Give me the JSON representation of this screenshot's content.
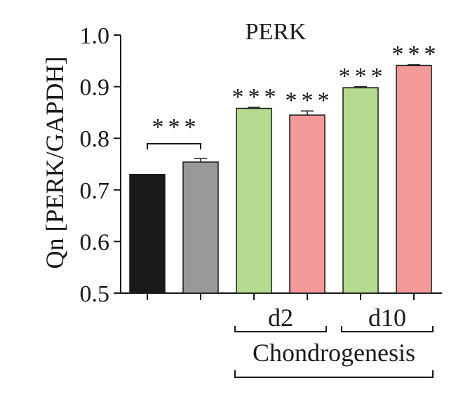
{
  "chart_data": {
    "type": "bar",
    "title": "PERK",
    "ylabel": "Qn [PERK/GAPDH]",
    "ylim": [
      0.5,
      1.0
    ],
    "yticks": [
      "0.5",
      "0.6",
      "0.7",
      "0.8",
      "0.9",
      "1.0"
    ],
    "grid": false,
    "bars": [
      {
        "value": 0.73,
        "error": 0.0,
        "color": "#1a1a1a",
        "sig": ""
      },
      {
        "value": 0.754,
        "error": 0.007,
        "color": "#999999",
        "sig": ""
      },
      {
        "value": 0.858,
        "error": 0.002,
        "color": "#b5d98f",
        "sig": "***"
      },
      {
        "value": 0.845,
        "error": 0.008,
        "color": "#f4999a",
        "sig": "***"
      },
      {
        "value": 0.898,
        "error": 0.002,
        "color": "#b5d98f",
        "sig": "***"
      },
      {
        "value": 0.941,
        "error": 0.002,
        "color": "#f4999a",
        "sig": "***"
      }
    ],
    "comparison_sig": "***",
    "groups": [
      {
        "label": "d2",
        "bars": [
          2,
          3
        ]
      },
      {
        "label": "d10",
        "bars": [
          4,
          5
        ]
      }
    ],
    "supergroup": {
      "label": "Chondrogenesis",
      "bars": [
        2,
        5
      ]
    }
  }
}
